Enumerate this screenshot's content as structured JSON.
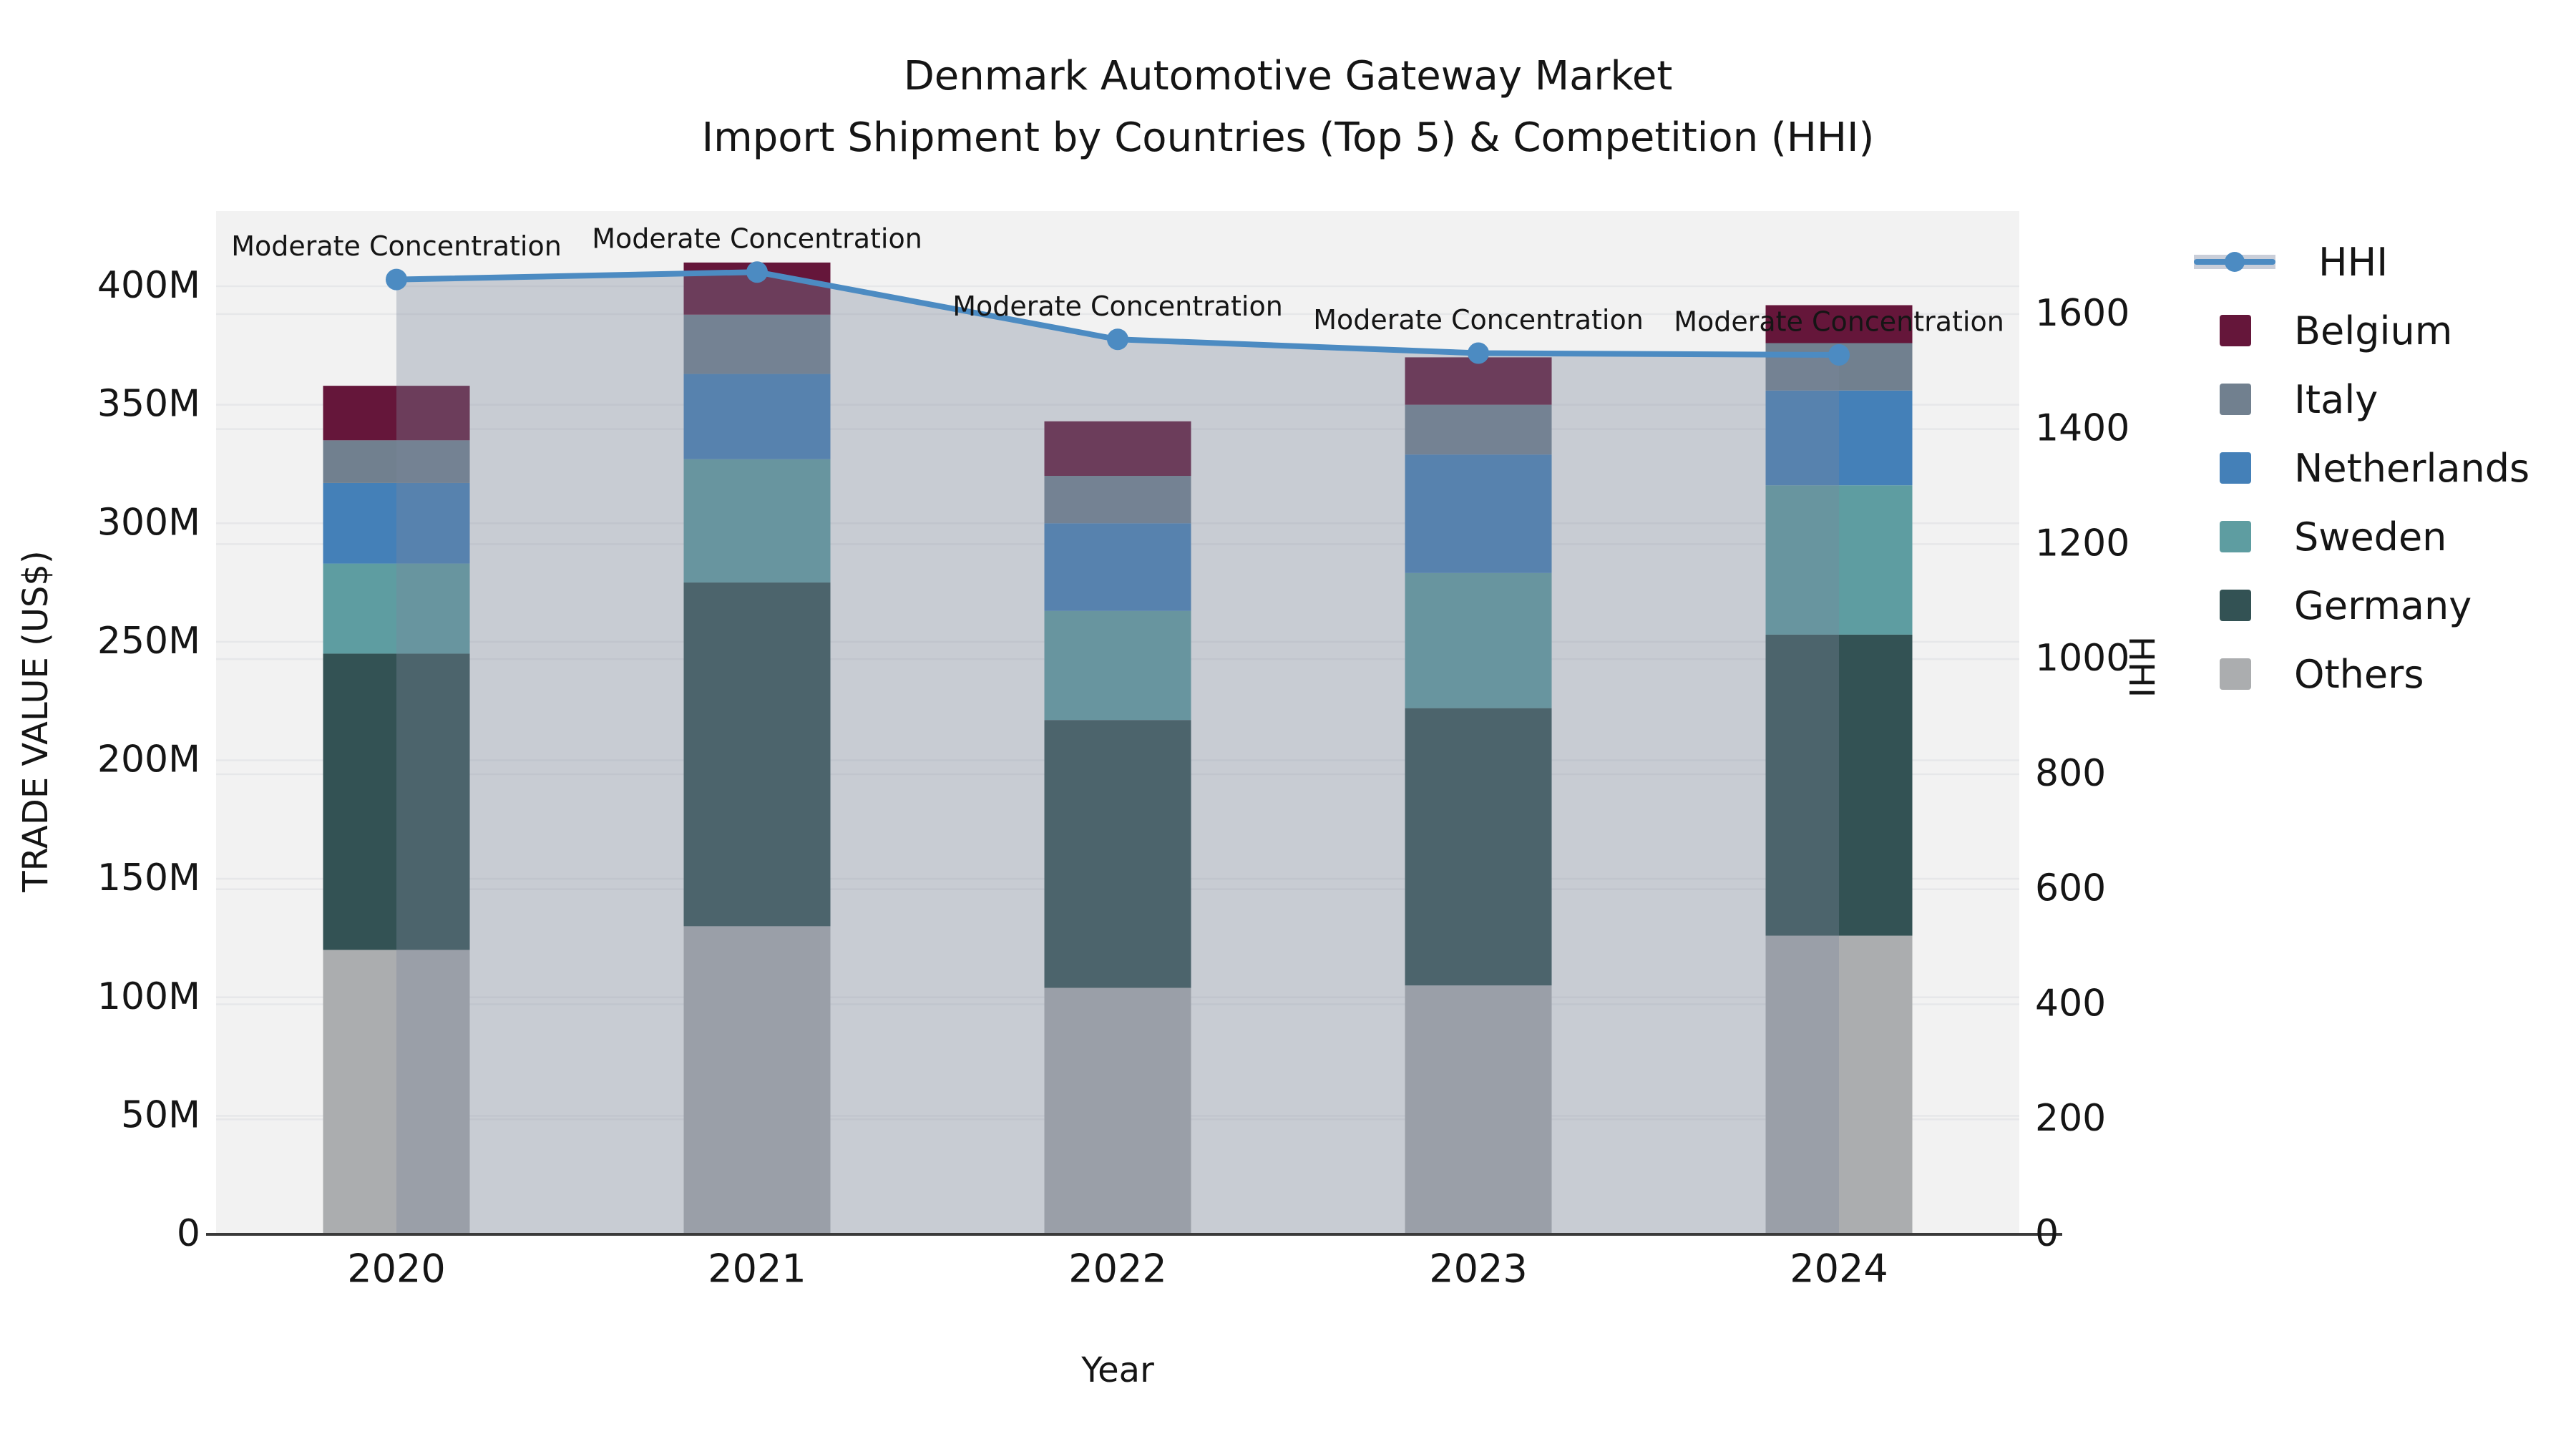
{
  "title": {
    "line1": "Denmark Automotive Gateway Market",
    "line2": "Import Shipment by Countries (Top 5) & Competition (HHI)"
  },
  "axis_labels": {
    "x": "Year",
    "y_left": "TRADE VALUE (US$)",
    "y_right": "HHI"
  },
  "legend": {
    "items": [
      {
        "label": "HHI",
        "type": "line",
        "color": "#4c8bc2",
        "band_color": "#c9ced9"
      },
      {
        "label": "Belgium",
        "type": "swatch",
        "color": "#65163a"
      },
      {
        "label": "Italy",
        "type": "swatch",
        "color": "#71808f"
      },
      {
        "label": "Netherlands",
        "type": "swatch",
        "color": "#4480b8"
      },
      {
        "label": "Sweden",
        "type": "swatch",
        "color": "#5e9da1"
      },
      {
        "label": "Germany",
        "type": "swatch",
        "color": "#335254"
      },
      {
        "label": "Others",
        "type": "swatch",
        "color": "#abadaf"
      }
    ]
  },
  "chart_data": {
    "type": "combo: stacked bar (left axis) + line with area fill (right axis)",
    "categories": [
      "2020",
      "2021",
      "2022",
      "2023",
      "2024"
    ],
    "bar_unit": "million US$",
    "series": [
      {
        "name": "Others",
        "color": "#abadaf",
        "values": [
          120,
          130,
          104,
          105,
          126
        ]
      },
      {
        "name": "Germany",
        "color": "#335254",
        "values": [
          125,
          145,
          113,
          117,
          127
        ]
      },
      {
        "name": "Sweden",
        "color": "#5e9da1",
        "values": [
          38,
          52,
          46,
          57,
          63
        ]
      },
      {
        "name": "Netherlands",
        "color": "#4480b8",
        "values": [
          34,
          36,
          37,
          50,
          40
        ]
      },
      {
        "name": "Italy",
        "color": "#71808f",
        "values": [
          18,
          25,
          20,
          21,
          20
        ]
      },
      {
        "name": "Belgium",
        "color": "#65163a",
        "values": [
          23,
          22,
          23,
          20,
          16
        ]
      }
    ],
    "bar_totals": [
      358,
      410,
      343,
      370,
      392
    ],
    "line_series": {
      "name": "HHI",
      "axis": "right",
      "color": "#4c8bc2",
      "area_fill": "rgba(122,134,154,0.35)",
      "marker": "circle",
      "values": [
        1660,
        1673,
        1556,
        1532,
        1529
      ]
    },
    "annotations": [
      {
        "text": "Moderate Concentration",
        "category": "2020"
      },
      {
        "text": "Moderate Concentration",
        "category": "2021"
      },
      {
        "text": "Moderate Concentration",
        "category": "2022"
      },
      {
        "text": "Moderate Concentration",
        "category": "2023"
      },
      {
        "text": "Moderate Concentration",
        "category": "2024"
      }
    ],
    "left_axis": {
      "label": "TRADE VALUE (US$)",
      "tick_values": [
        0,
        50,
        100,
        150,
        200,
        250,
        300,
        350,
        400
      ],
      "tick_labels": [
        "0",
        "50M",
        "100M",
        "150M",
        "200M",
        "250M",
        "300M",
        "350M",
        "400M"
      ],
      "range": [
        0,
        431.7
      ]
    },
    "right_axis": {
      "label": "HHI",
      "tick_values": [
        0,
        200,
        400,
        600,
        800,
        1000,
        1200,
        1400,
        1600
      ],
      "tick_labels": [
        "0",
        "200",
        "400",
        "600",
        "800",
        "1000",
        "1200",
        "1400",
        "1600"
      ],
      "range": [
        0,
        1779
      ]
    },
    "grid": "on",
    "legend_position": "outside upper right",
    "plot_background": "#f2f2f2"
  },
  "colors": {
    "page_bg": "#ffffff",
    "plot_bg": "#f2f2f2",
    "gridline": "#e6e7e9",
    "spine": "#3a3a3a",
    "text": "#151515",
    "annotation_text": "#111111"
  }
}
